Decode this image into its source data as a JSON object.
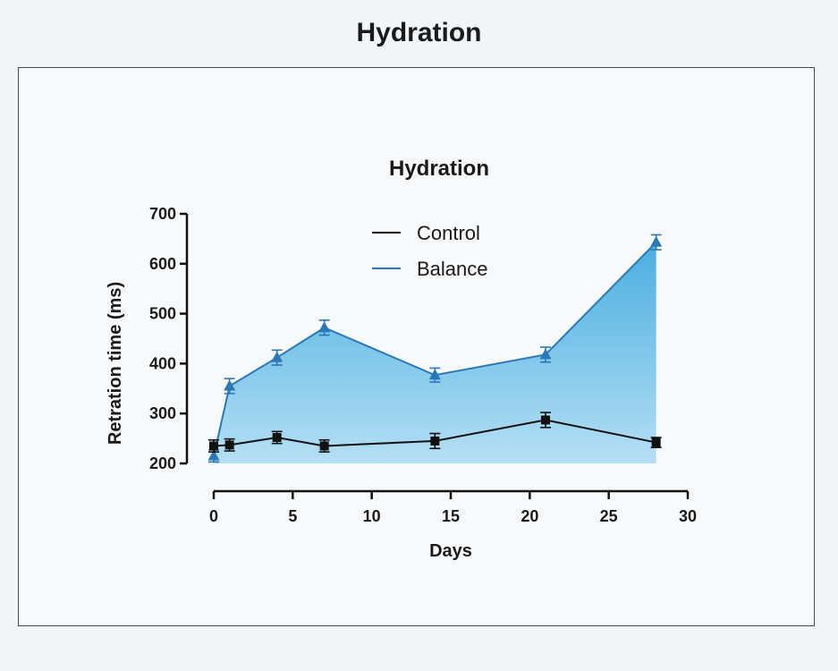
{
  "page": {
    "title": "Hydration"
  },
  "colors": {
    "control": "#111111",
    "balance": "#2a78b8",
    "fill_top": "#4aaee0",
    "fill_bottom": "#b5dff4"
  },
  "chart_data": {
    "type": "line",
    "title": "Hydration",
    "xlabel": "Days",
    "ylabel": "Retration time (ms)",
    "xlim": [
      0,
      30
    ],
    "ylim": [
      200,
      700
    ],
    "xticks": [
      0,
      5,
      10,
      15,
      20,
      25,
      30
    ],
    "yticks": [
      200,
      300,
      400,
      500,
      600,
      700
    ],
    "grid": false,
    "legend_position": "top",
    "series": [
      {
        "name": "Control",
        "marker": "square",
        "x": [
          0,
          1,
          4,
          7,
          14,
          21,
          28
        ],
        "y": [
          235,
          237,
          252,
          235,
          245,
          287,
          242
        ],
        "error": [
          12,
          12,
          12,
          12,
          15,
          15,
          10
        ]
      },
      {
        "name": "Balance",
        "marker": "triangle",
        "x": [
          0,
          1,
          4,
          7,
          14,
          21,
          28
        ],
        "y": [
          215,
          355,
          412,
          472,
          377,
          418,
          643
        ],
        "error": [
          12,
          15,
          15,
          15,
          14,
          15,
          15
        ]
      }
    ]
  }
}
